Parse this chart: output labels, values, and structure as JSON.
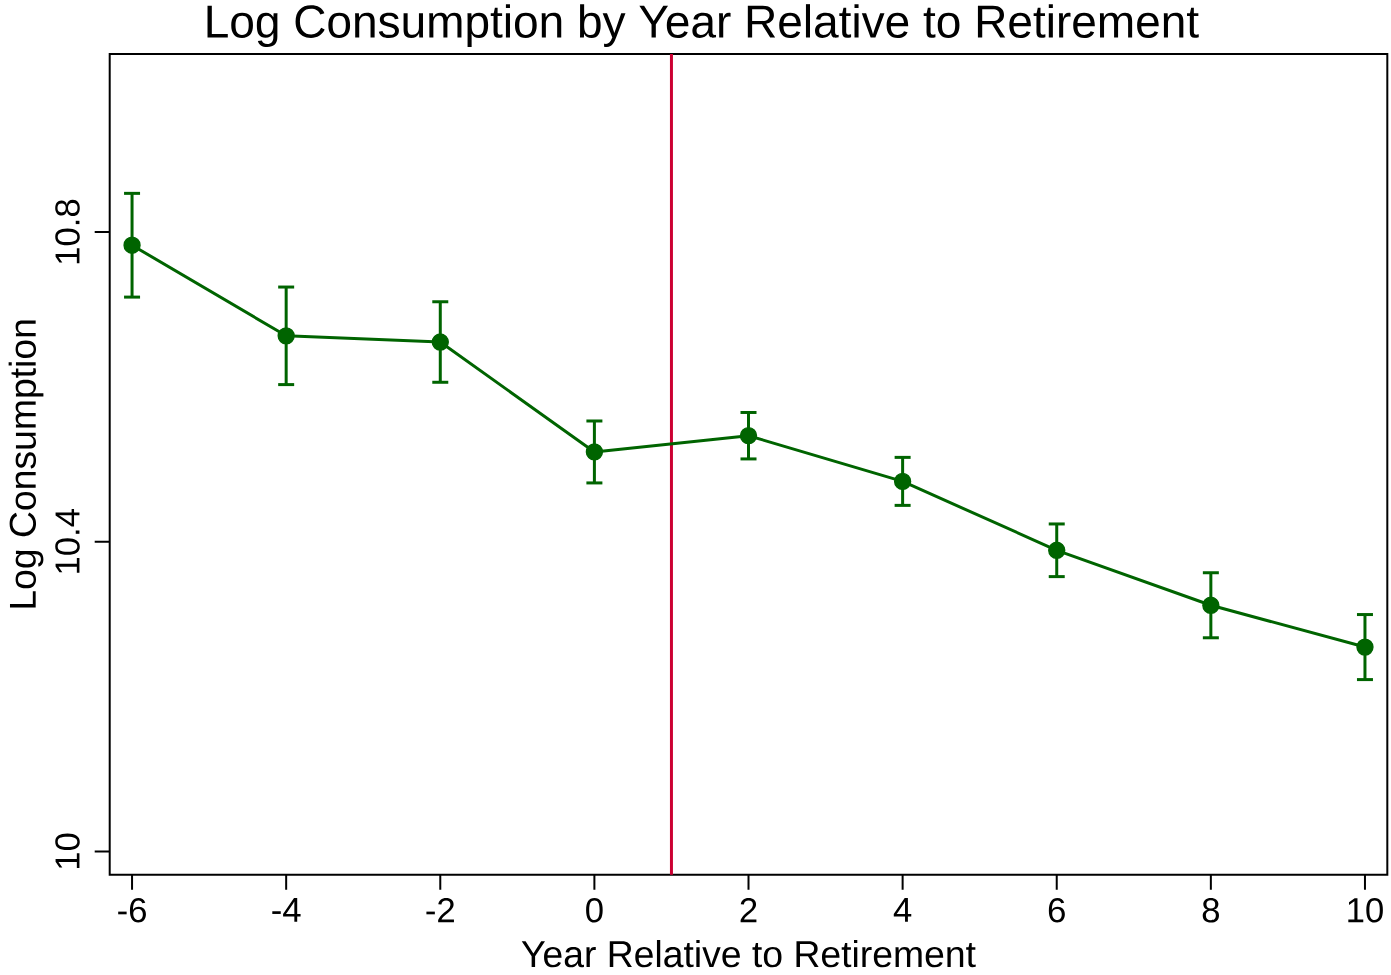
{
  "chart_data": {
    "type": "line",
    "title": "Log Consumption by Year Relative to Retirement",
    "xlabel": "Year Relative to Retirement",
    "ylabel": "Log Consumption",
    "x": [
      -6,
      -4,
      -2,
      0,
      2,
      4,
      6,
      8,
      10
    ],
    "values": [
      10.783,
      10.666,
      10.658,
      10.516,
      10.537,
      10.478,
      10.389,
      10.318,
      10.264
    ],
    "errors": [
      0.067,
      0.063,
      0.052,
      0.04,
      0.03,
      0.031,
      0.034,
      0.042,
      0.042
    ],
    "color": "#006400",
    "marker": "circle",
    "line_style": "solid",
    "xlim": [
      -6.29,
      10.29
    ],
    "ylim": [
      9.97,
      11.03
    ],
    "xticks": [
      -6,
      -4,
      -2,
      0,
      2,
      4,
      6,
      8,
      10
    ],
    "yticks": [
      10,
      10.4,
      10.8
    ],
    "ref_lines": [
      {
        "axis": "x",
        "value": 1,
        "color": "#cc0033"
      }
    ]
  }
}
